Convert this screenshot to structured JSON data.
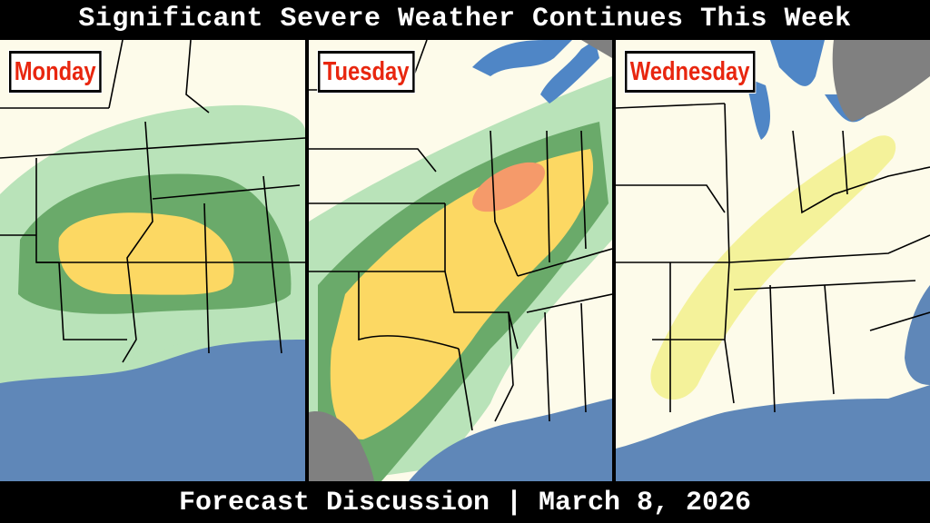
{
  "header": {
    "title": "Significant Severe Weather Continues This Week"
  },
  "footer": {
    "text": "Forecast Discussion | March 8, 2026"
  },
  "panels": [
    {
      "day": "Monday",
      "risk_levels_shown": [
        "marginal",
        "slight",
        "enhanced"
      ]
    },
    {
      "day": "Tuesday",
      "risk_levels_shown": [
        "marginal",
        "slight",
        "enhanced",
        "moderate"
      ]
    },
    {
      "day": "Wednesday",
      "risk_levels_shown": [
        "enhanced-light"
      ]
    }
  ],
  "colors": {
    "land": "#fdfbea",
    "water": "#5f87b8",
    "great_lakes": "#4f86c6",
    "foreign_land": "#808080",
    "marginal": "#b9e3b9",
    "slight": "#6aaa6a",
    "enhanced": "#fcd863",
    "moderate": "#f59a6a",
    "wednesday_risk": "#f4f29a"
  }
}
